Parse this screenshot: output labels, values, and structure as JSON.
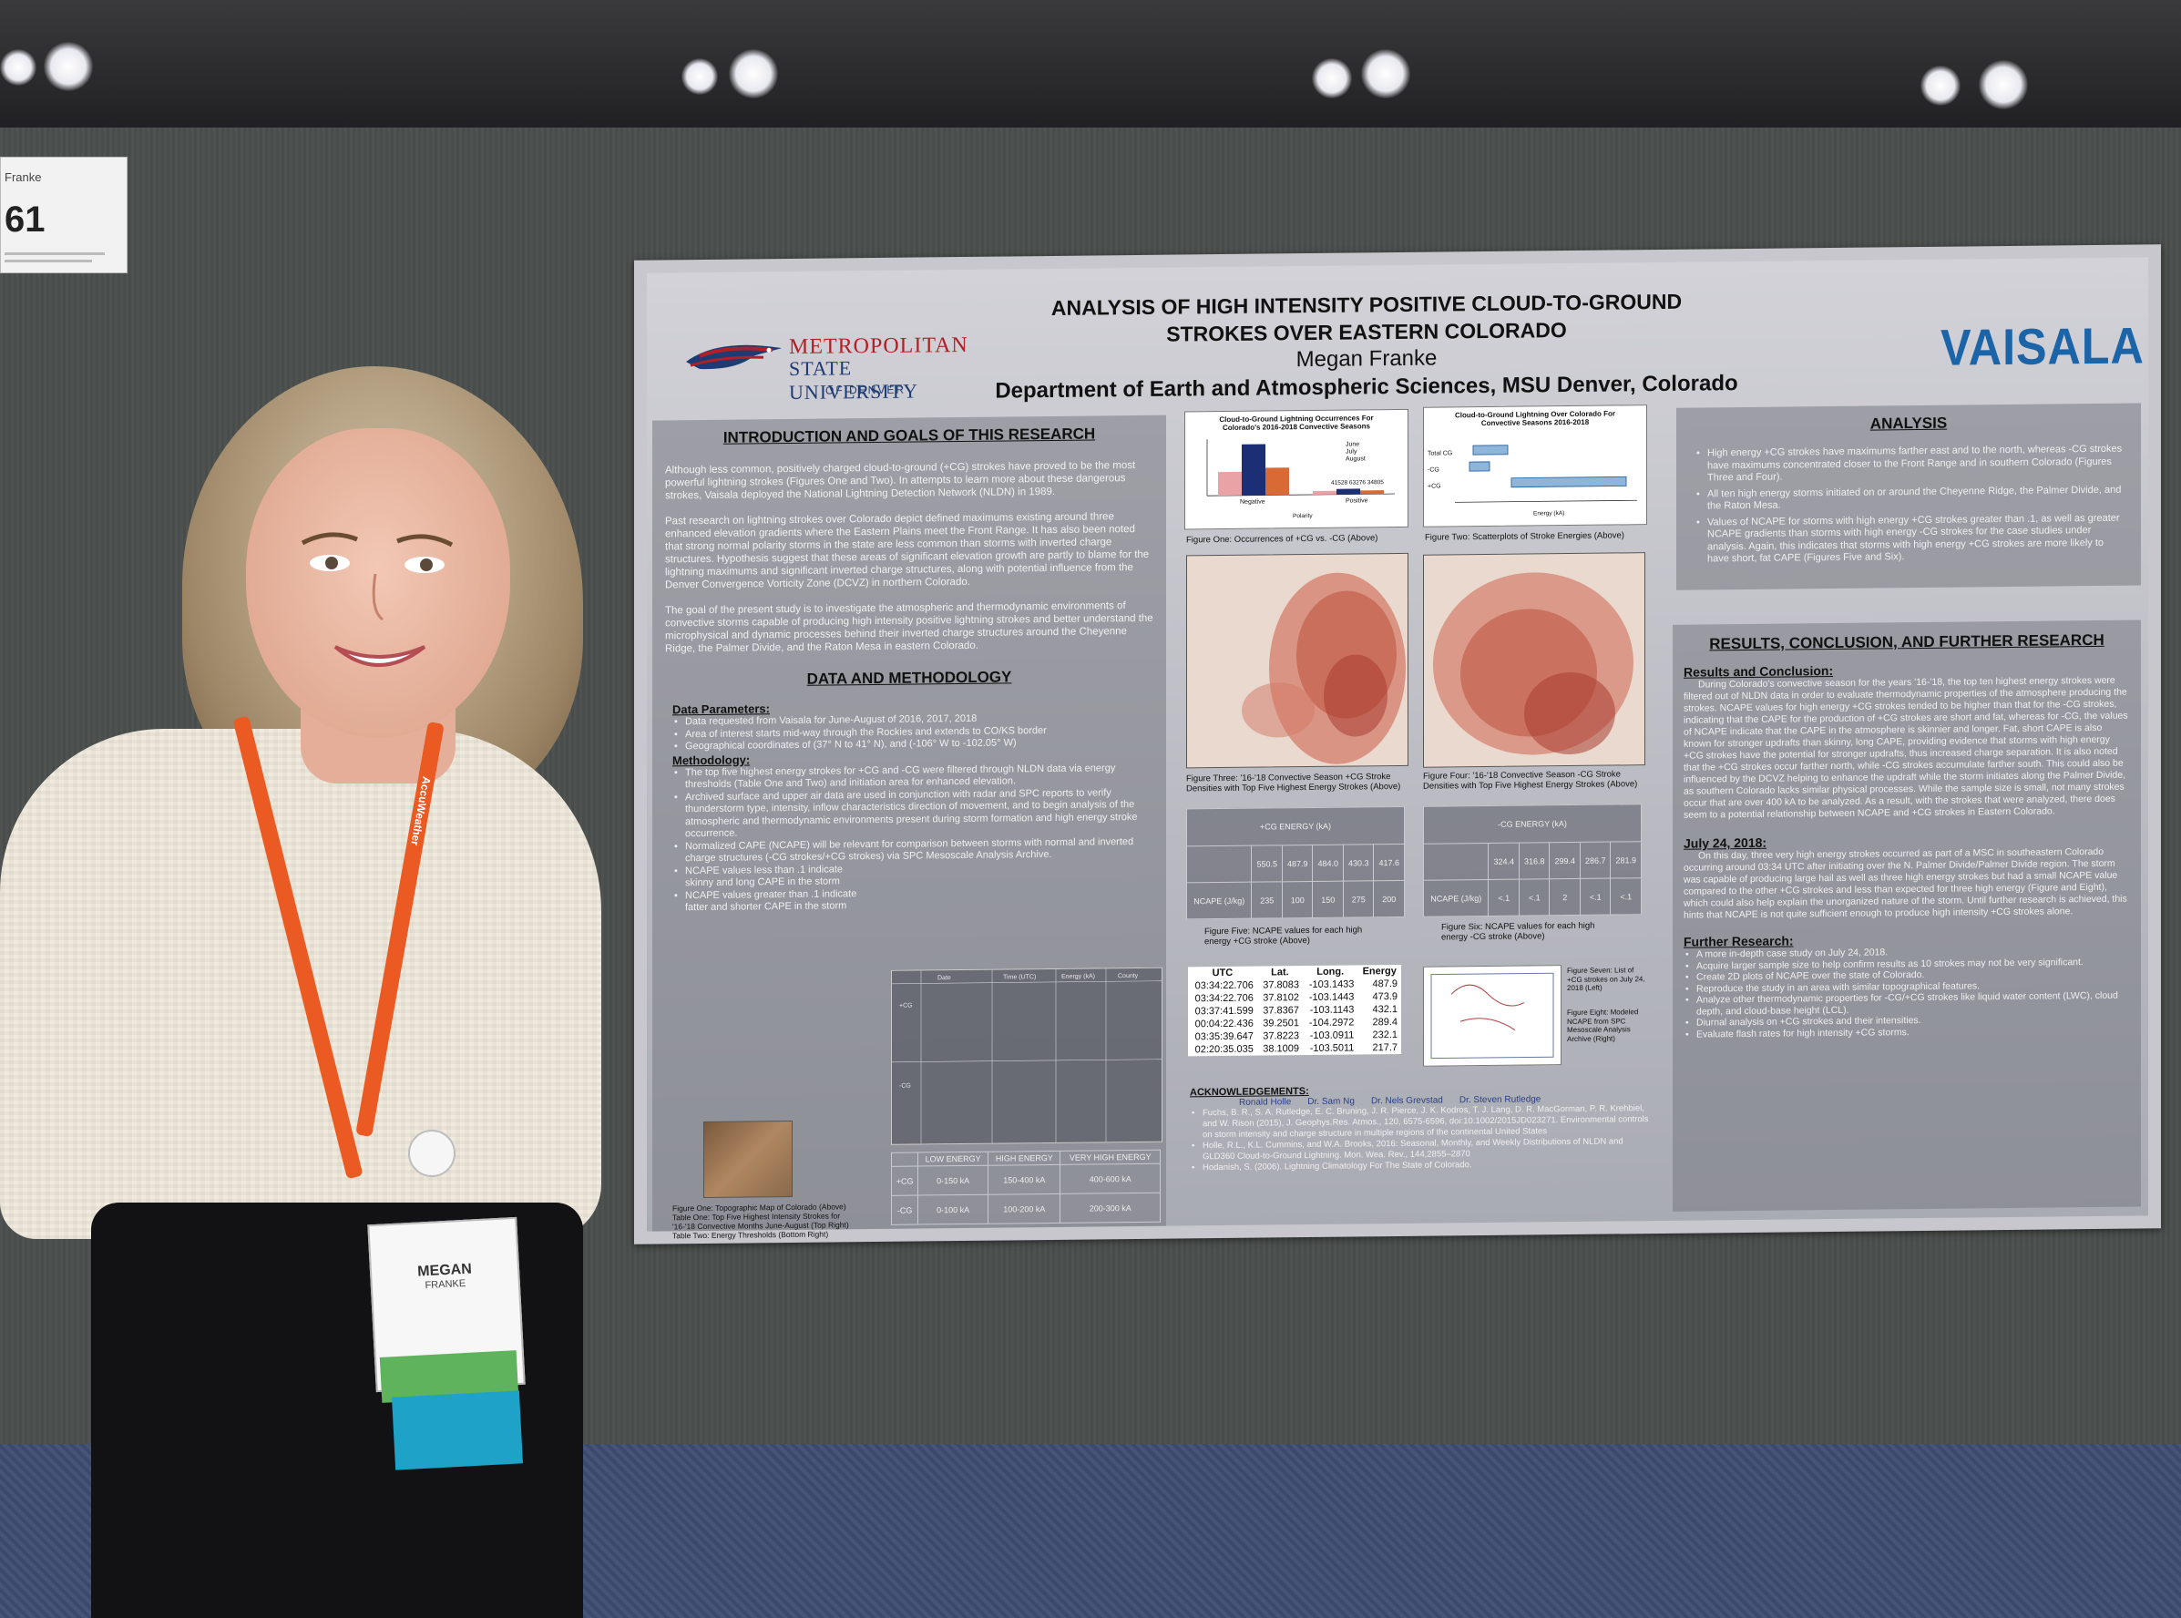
{
  "booth": {
    "name_partial": "Franke",
    "number": "61"
  },
  "poster": {
    "title_line1": "ANALYSIS OF HIGH INTENSITY POSITIVE CLOUD-TO-GROUND",
    "title_line2": "STROKES OVER EASTERN COLORADO",
    "author": "Megan Franke",
    "affiliation": "Department of Earth and Atmospheric Sciences, MSU Denver, Colorado",
    "logo_left": {
      "line1": "METROPOLITAN",
      "line2": "STATE UNIVERSITY",
      "line3": "OF DENVER"
    },
    "logo_right": "VAISALA",
    "intro": {
      "heading": "INTRODUCTION AND GOALS OF THIS RESEARCH",
      "p1": "Although less common, positively charged cloud-to-ground (+CG) strokes have proved to be the most powerful lightning strokes (Figures One and Two). In attempts to learn more about these dangerous strokes, Vaisala deployed the National Lightning Detection Network (NLDN) in 1989.",
      "p2": "Past research on lightning strokes over Colorado depict defined maximums existing around three enhanced elevation gradients where the Eastern Plains meet the Front Range. It has also been noted that strong normal polarity storms in the state are less common than storms with inverted charge structures. Hypothesis suggest that these areas of significant elevation growth are partly to blame for the lightning maximums and significant inverted charge structures, along with potential influence from the Denver Convergence Vorticity Zone (DCVZ) in northern Colorado.",
      "p3": "The goal of the present study is to investigate the atmospheric and thermodynamic environments of convective storms capable of producing high intensity positive lightning strokes and better understand the microphysical and dynamic processes behind their inverted charge structures around the Cheyenne Ridge, the Palmer Divide, and the Raton Mesa in eastern Colorado."
    },
    "data_methods": {
      "heading": "DATA AND METHODOLOGY",
      "params_heading": "Data Parameters:",
      "params": [
        "Data requested from Vaisala for June-August of 2016, 2017, 2018",
        "Area of interest starts mid-way through the Rockies and extends to CO/KS border",
        "Geographical coordinates of (37° N to 41° N), and (-106° W to -102.05° W)"
      ],
      "method_heading": "Methodology:",
      "methods": [
        "The top five highest energy strokes for +CG and -CG were filtered through NLDN data via energy thresholds (Table One and Two) and initiation area for enhanced elevation.",
        "Archived surface and upper air data are used in conjunction with radar and SPC reports to verify thunderstorm type, intensity, inflow characteristics direction of movement, and to begin analysis of the atmospheric and thermodynamic environments present during storm formation and high energy stroke occurrence.",
        "Normalized CAPE (NCAPE) will be relevant for comparison between storms with normal and inverted charge structures (-CG strokes/+CG strokes) via SPC Mesoscale Analysis Archive.",
        "NCAPE values less than .1 indicate skinny and long CAPE in the storm",
        "NCAPE values greater than .1 indicate fatter and shorter CAPE in the storm"
      ],
      "captions": [
        "Figure One: Topographic Map of Colorado (Above)",
        "Table One: Top Five Highest Intensity Strokes for '16-'18 Convective Months June-August (Top Right)",
        "Table Two: Energy Thresholds (Bottom Right)"
      ],
      "thresholds_headers": [
        "",
        "LOW ENERGY",
        "HIGH ENERGY",
        "VERY HIGH ENERGY"
      ],
      "thresholds_rows": [
        [
          "+CG",
          "0-150 kA",
          "150-400 kA",
          "400-600 kA"
        ],
        [
          "-CG",
          "0-100 kA",
          "100-200 kA",
          "200-300 kA"
        ]
      ]
    },
    "figures": {
      "fig1_title": "Cloud-to-Ground Lightning Occurrences For Colorado's 2016-2018 Convective Seasons",
      "fig1_caption": "Figure One: Occurrences of +CG vs. -CG (Above)",
      "fig1_legend": [
        "June",
        "July",
        "August"
      ],
      "fig1_xlabels": [
        "Negative",
        "Positive"
      ],
      "fig1_counts": "41528   63276   34805",
      "fig1_xaxis": "Polarity",
      "fig2_title": "Cloud-to-Ground Lightning Over Colorado For Convective Seasons 2016-2018",
      "fig2_caption": "Figure Two: Scatterplots of Stroke Energies (Above)",
      "fig2_ylabels": [
        "Total CG",
        "-CG",
        "+CG"
      ],
      "fig2_xaxis": "Energy (kA)",
      "fig3_caption": "Figure Three: '16-'18 Convective Season +CG Stroke Densities with Top Five Highest Energy Strokes (Above)",
      "fig4_caption": "Figure Four: '16-'18 Convective Season -CG Stroke Densities with Top Five Highest Energy Strokes (Above)",
      "fig5_header": "+CG ENERGY (kA)",
      "fig5_values": [
        "550.5",
        "487.9",
        "484.0",
        "430.3",
        "417.6"
      ],
      "fig5_ncape": [
        "235",
        "100",
        "150",
        "275",
        "200"
      ],
      "fig5_caption": "Figure Five: NCAPE values for each high energy +CG stroke (Above)",
      "fig6_header": "-CG ENERGY (kA)",
      "fig6_values": [
        "324.4",
        "316.8",
        "299.4",
        "286.7",
        "281.9"
      ],
      "fig6_ncape": [
        "<.1",
        "<.1",
        "2",
        "<.1",
        "<.1"
      ],
      "fig6_caption": "Figure Six: NCAPE values for each high energy -CG stroke (Above)",
      "ncape_label": "NCAPE (J/kg)",
      "fig7_caption": "Figure Seven: List of +CG strokes on July 24, 2018 (Left)",
      "fig8_caption": "Figure Eight: Modeled NCAPE from SPC Mesoscale Analysis Archive (Right)"
    },
    "utc_table": {
      "headers": [
        "UTC",
        "Lat.",
        "Long.",
        "Energy"
      ],
      "rows": [
        [
          "03:34:22.706",
          "37.8083",
          "-103.1433",
          "487.9"
        ],
        [
          "03:34:22.706",
          "37.8102",
          "-103.1443",
          "473.9"
        ],
        [
          "03:37:41.599",
          "37.8367",
          "-103.1143",
          "432.1"
        ],
        [
          "00:04:22.436",
          "39.2501",
          "-104.2972",
          "289.4"
        ],
        [
          "03:35:39.647",
          "37.8223",
          "-103.0911",
          "232.1"
        ],
        [
          "02:20:35.035",
          "38.1009",
          "-103.5011",
          "217.7"
        ]
      ]
    },
    "acknowledgements": {
      "heading": "ACKNOWLEDGEMENTS:",
      "names": [
        "Ronald Holle",
        "Dr. Sam Ng",
        "Dr. Nels Grevstad",
        "Dr. Steven Rutledge"
      ],
      "refs": [
        "Fuchs, B. R., S. A. Rutledge, E. C. Bruning, J. R. Pierce, J. K. Kodros, T. J. Lang, D. R. MacGorman, P. R. Krehbiel, and W. Rison (2015), J. Geophys.Res. Atmos., 120, 6575-6596, doi:10.1002/2015JD023271. Environmental controls on storm intensity and charge structure in multiple regions of the continental United States",
        "Holle, R.L., K.L. Cummins, and W.A. Brooks, 2016: Seasonal, Monthly, and Weekly Distributions of NLDN and GLD360 Cloud-to-Ground Lightning. Mon. Wea. Rev., 144,2855–2870",
        "Hodanish, S. (2006). Lightning Climatology For The State of Colorado."
      ]
    },
    "analysis": {
      "heading": "ANALYSIS",
      "items": [
        "High energy +CG strokes have maximums farther east and to the north, whereas -CG strokes have maximums concentrated closer to the Front Range and in southern Colorado (Figures Three and Four).",
        "All ten high energy storms initiated on or around the Cheyenne Ridge, the Palmer Divide, and the Raton Mesa.",
        "Values of NCAPE for storms with high energy +CG strokes greater than .1, as well as greater NCAPE gradients than storms with high energy -CG strokes for the case studies under analysis. Again, this indicates that storms with high energy +CG strokes are more likely to have short, fat CAPE (Figures Five and Six)."
      ]
    },
    "results": {
      "heading": "RESULTS, CONCLUSION, AND FURTHER RESEARCH",
      "rc_heading": "Results and Conclusion:",
      "rc_text": "During Colorado's convective season for the years '16-'18, the top ten highest energy strokes were filtered out of NLDN data in order to evaluate thermodynamic properties of the atmosphere producing the strokes. NCAPE values for high energy +CG strokes tended to be higher than that for the -CG strokes, indicating that the CAPE for the production of +CG strokes are short and fat, whereas for -CG, the values of NCAPE indicate that the CAPE in the atmosphere is skinnier and longer. Fat, short CAPE is also known for stronger updrafts than skinny, long CAPE, providing evidence that storms with high energy +CG strokes have the potential for stronger updrafts, thus increased charge separation. It is also noted that the +CG strokes occur farther north, while -CG strokes accumulate farther south. This could also be influenced by the DCVZ helping to enhance the updraft while the storm initiates along the Palmer Divide, as southern Colorado lacks similar physical processes. While the sample size is small, not many strokes occur that are over 400 kA to be analyzed. As a result, with the strokes that were analyzed, there does seem to a potential relationship between NCAPE and +CG strokes in Eastern Colorado.",
      "july_heading": "July 24, 2018:",
      "july_text": "On this day, three very high energy strokes occurred as part of a MSC in southeastern Colorado occurring around 03:34 UTC after initiating over the N. Palmer Divide/Palmer Divide region. The storm was capable of producing large hail as well as three high energy strokes but had a small NCAPE value compared to the other +CG strokes and less than expected for three high energy (Figure and Eight), which could also help explain the unorganized nature of the storm. Until further research is achieved, this hints that NCAPE is not quite sufficient enough to produce high intensity +CG strokes alone.",
      "further_heading": "Further Research:",
      "further_items": [
        "A more in-depth case study on July 24, 2018.",
        "Acquire larger sample size to help confirm results as 10 strokes may not be very significant.",
        "Create 2D plots of NCAPE over the state of Colorado.",
        "Reproduce the study in an area with similar topographical features.",
        "Analyze other thermodynamic properties for -CG/+CG strokes like liquid water content (LWC), cloud depth, and cloud-base height (LCL).",
        "Diurnal analysis on +CG strokes and their intensities.",
        "Evaluate flash rates for high intensity +CG storms."
      ]
    }
  },
  "badge": {
    "first": "MEGAN",
    "last": "FRANKE"
  },
  "lanyard_text": "AccuWeather",
  "colors": {
    "lanyard": "#ea5a22",
    "vaisala": "#1b64a8",
    "msu_red": "#b21f24",
    "msu_blue": "#1f3b74"
  }
}
